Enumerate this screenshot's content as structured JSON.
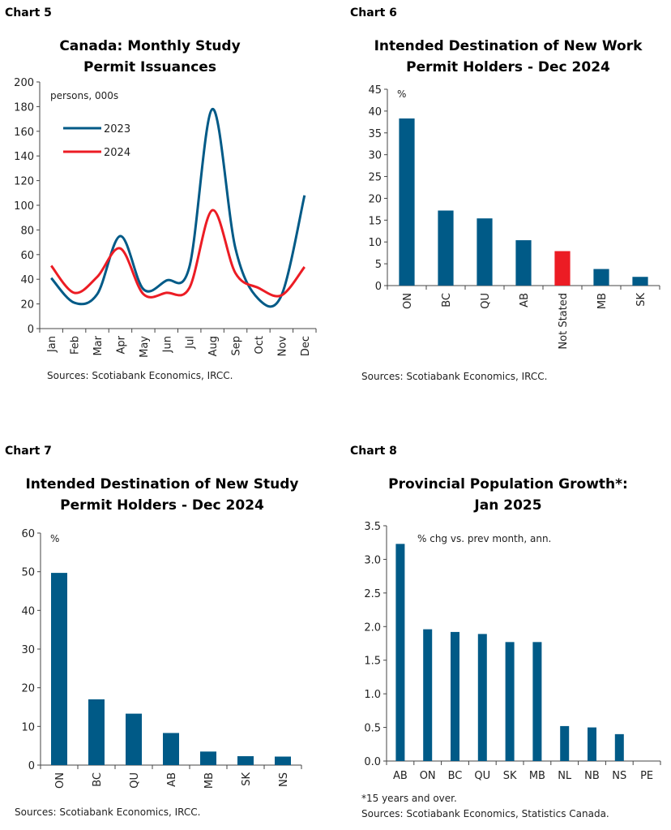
{
  "colors": {
    "primary": "#005a87",
    "highlight": "#ec1c24",
    "series_2023": "#005a87",
    "series_2024": "#ec1c24"
  },
  "chart_data": [
    {
      "id": "c5",
      "type": "line",
      "label": "Chart 5",
      "title": [
        "Canada: Monthly Study",
        "Permit Issuances"
      ],
      "unit_note": "persons, 000s",
      "ylim": [
        0,
        200
      ],
      "yticks": [
        0,
        20,
        40,
        60,
        80,
        100,
        120,
        140,
        160,
        180,
        200
      ],
      "categories": [
        "Jan",
        "Feb",
        "Mar",
        "Apr",
        "May",
        "Jun",
        "Jul",
        "Aug",
        "Sep",
        "Oct",
        "Nov",
        "Dec"
      ],
      "series": [
        {
          "name": "2023",
          "color": "#005a87",
          "values": [
            41,
            21,
            28,
            75,
            32,
            39,
            50,
            178,
            65,
            24,
            27,
            108
          ]
        },
        {
          "name": "2024",
          "color": "#ec1c24",
          "values": [
            51,
            29,
            42,
            65,
            28,
            29,
            33,
            96,
            45,
            33,
            27,
            50
          ]
        }
      ],
      "legend": "top-left",
      "grid": false,
      "source": "Sources: Scotiabank Economics, IRCC."
    },
    {
      "id": "c6",
      "type": "bar",
      "label": "Chart 6",
      "title": [
        "Intended Destination of New Work",
        "Permit Holders - Dec 2024"
      ],
      "unit_note": "%",
      "ylim": [
        0,
        45
      ],
      "yticks": [
        0,
        5,
        10,
        15,
        20,
        25,
        30,
        35,
        40,
        45
      ],
      "categories": [
        "ON",
        "BC",
        "QU",
        "AB",
        "Not Stated",
        "MB",
        "SK"
      ],
      "values": [
        38.3,
        17.2,
        15.4,
        10.4,
        7.9,
        3.8,
        2.0
      ],
      "highlight_index": 4,
      "grid": false,
      "source": "Sources: Scotiabank Economics, IRCC."
    },
    {
      "id": "c7",
      "type": "bar",
      "label": "Chart 7",
      "title": [
        "Intended Destination of New Study",
        "Permit Holders - Dec 2024"
      ],
      "unit_note": "%",
      "ylim": [
        0,
        60
      ],
      "yticks": [
        0,
        10,
        20,
        30,
        40,
        50,
        60
      ],
      "categories": [
        "ON",
        "BC",
        "QU",
        "AB",
        "MB",
        "SK",
        "NS"
      ],
      "values": [
        49.7,
        17.0,
        13.3,
        8.3,
        3.5,
        2.3,
        2.2
      ],
      "grid": false,
      "source": "Sources: Scotiabank Economics, IRCC."
    },
    {
      "id": "c8",
      "type": "bar",
      "label": "Chart 8",
      "title": [
        "Provincial Population Growth*:",
        "Jan 2025"
      ],
      "unit_note": "% chg vs. prev month, ann.",
      "ylim": [
        0,
        3.5
      ],
      "yticks": [
        "0.0",
        "0.5",
        "1.0",
        "1.5",
        "2.0",
        "2.5",
        "3.0",
        "3.5"
      ],
      "categories": [
        "AB",
        "ON",
        "BC",
        "QU",
        "SK",
        "MB",
        "NL",
        "NB",
        "NS",
        "PE"
      ],
      "values": [
        3.23,
        1.96,
        1.92,
        1.89,
        1.77,
        1.77,
        0.52,
        0.5,
        0.4,
        0
      ],
      "grid": false,
      "footnote": "*15 years and over.",
      "source": "Sources: Scotiabank Economics, Statistics Canada."
    }
  ]
}
